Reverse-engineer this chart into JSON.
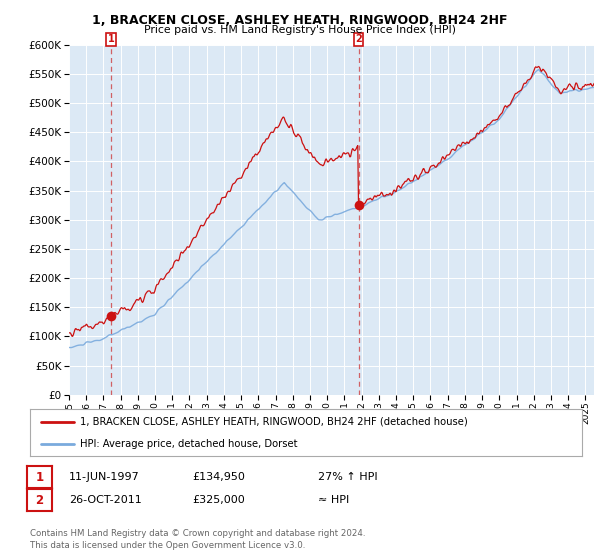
{
  "title": "1, BRACKEN CLOSE, ASHLEY HEATH, RINGWOOD, BH24 2HF",
  "subtitle": "Price paid vs. HM Land Registry's House Price Index (HPI)",
  "ylim": [
    0,
    600000
  ],
  "yticks": [
    0,
    50000,
    100000,
    150000,
    200000,
    250000,
    300000,
    350000,
    400000,
    450000,
    500000,
    550000,
    600000
  ],
  "bg_color": "#dce9f5",
  "grid_color": "#b8cfe0",
  "hpi_color": "#7aaadd",
  "price_color": "#cc1111",
  "sale1_x": 1997.44,
  "sale1_y": 134950,
  "sale1_label": "11-JUN-1997",
  "sale1_price": "£134,950",
  "sale1_note": "27% ↑ HPI",
  "sale2_x": 2011.82,
  "sale2_y": 325000,
  "sale2_label": "26-OCT-2011",
  "sale2_price": "£325,000",
  "sale2_note": "≈ HPI",
  "legend_line1": "1, BRACKEN CLOSE, ASHLEY HEATH, RINGWOOD, BH24 2HF (detached house)",
  "legend_line2": "HPI: Average price, detached house, Dorset",
  "footer": "Contains HM Land Registry data © Crown copyright and database right 2024.\nThis data is licensed under the Open Government Licence v3.0.",
  "xmin": 1995.0,
  "xmax": 2025.5
}
